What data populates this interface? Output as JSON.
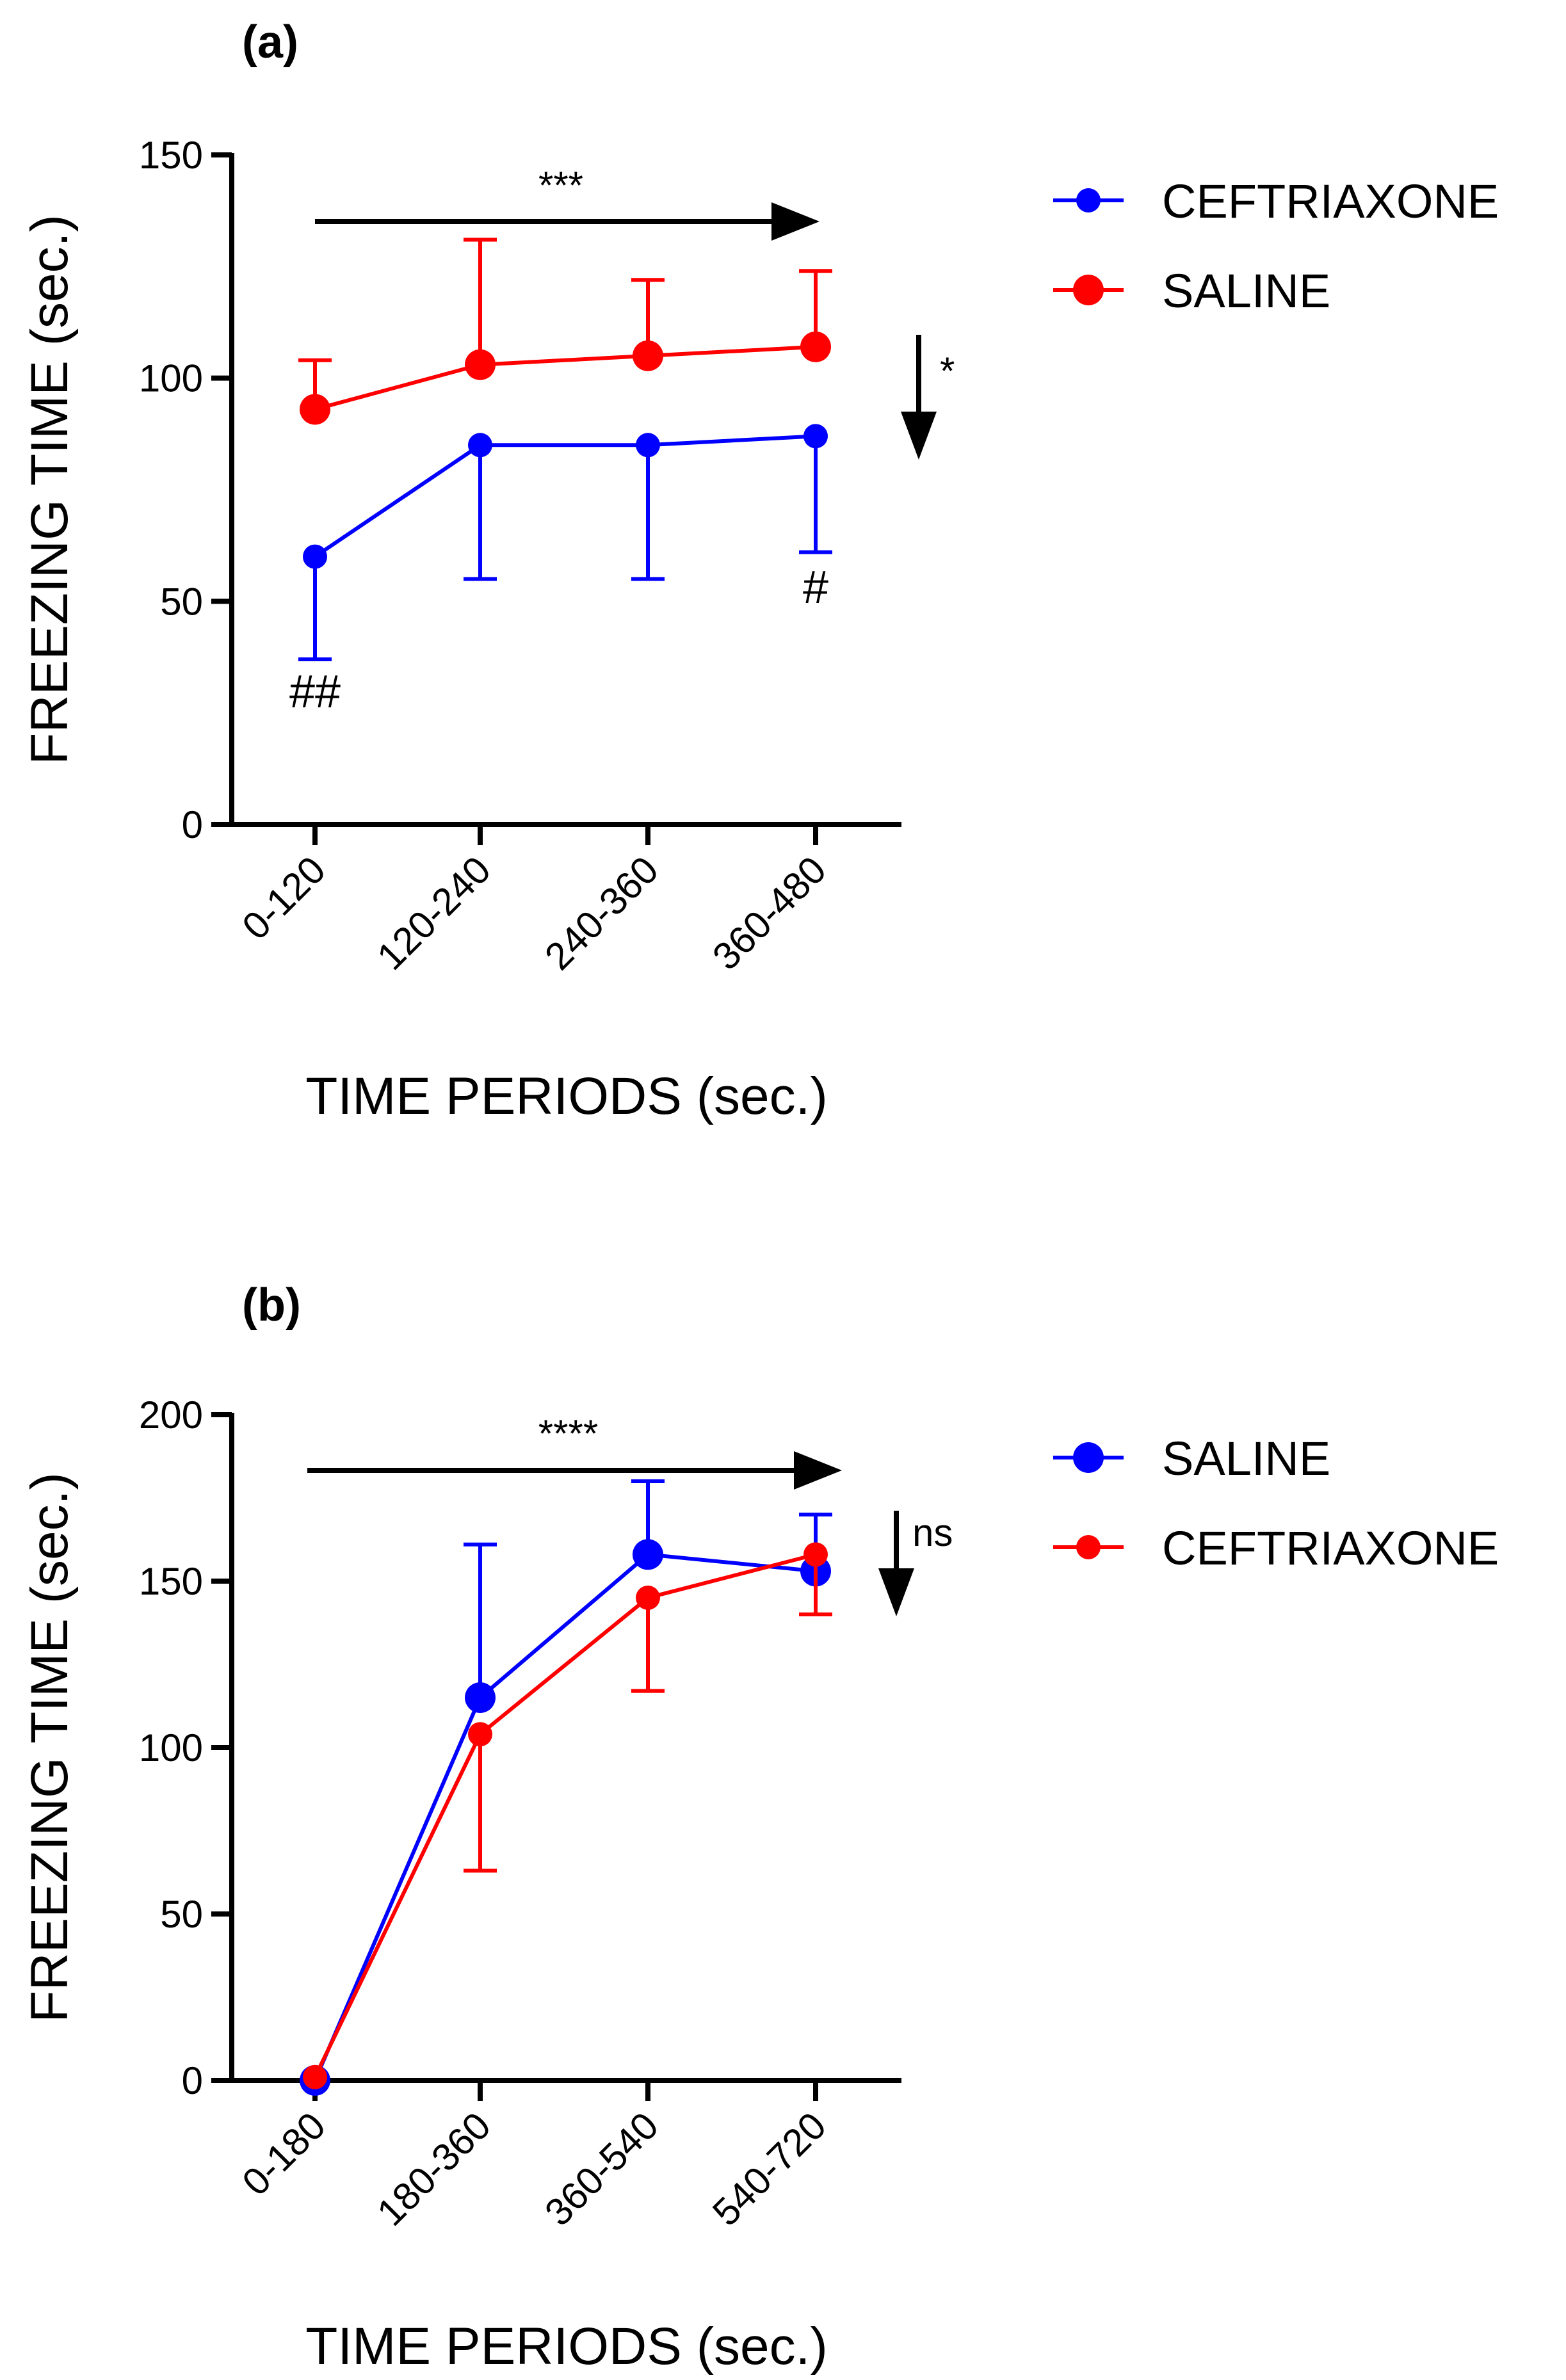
{
  "chart_data": [
    {
      "type": "line",
      "panel_label": "(a)",
      "categories": [
        "0-120",
        "120-240",
        "240-360",
        "360-480"
      ],
      "xlabel": "TIME PERIODS (sec.)",
      "ylabel": "FREEZING TIME (sec.)",
      "ylim": [
        0,
        150
      ],
      "yticks": [
        0,
        50,
        100,
        150
      ],
      "grid": false,
      "legend_position": "right",
      "series": [
        {
          "name": "CEFTRIAXONE",
          "color": "#0000ff",
          "marker": "small",
          "values": [
            60,
            85,
            85,
            87
          ],
          "error_direction": "down",
          "errors": [
            23,
            30,
            30,
            26
          ]
        },
        {
          "name": "SALINE",
          "color": "#ff0000",
          "marker": "large",
          "values": [
            93,
            103,
            105,
            107
          ],
          "error_direction": "up",
          "errors": [
            11,
            28,
            17,
            17
          ]
        }
      ],
      "annotations": {
        "trend_label": "***",
        "group_label": "*",
        "hash_labels": [
          {
            "category_index": 0,
            "text": "##"
          },
          {
            "category_index": 3,
            "text": "#"
          }
        ]
      }
    },
    {
      "type": "line",
      "panel_label": "(b)",
      "categories": [
        "0-180",
        "180-360",
        "360-540",
        "540-720"
      ],
      "xlabel": "TIME PERIODS (sec.)",
      "ylabel": "FREEZING TIME (sec.)",
      "ylim": [
        0,
        200
      ],
      "yticks": [
        0,
        50,
        100,
        150,
        200
      ],
      "grid": false,
      "legend_position": "right",
      "series": [
        {
          "name": "SALINE",
          "color": "#0000ff",
          "marker": "large",
          "values": [
            0,
            115,
            158,
            153
          ],
          "error_direction": "up",
          "errors": [
            0,
            46,
            22,
            17
          ]
        },
        {
          "name": "CEFTRIAXONE",
          "color": "#ff0000",
          "marker": "small",
          "values": [
            1,
            104,
            145,
            158
          ],
          "error_direction": "down",
          "errors": [
            0,
            41,
            28,
            18
          ]
        }
      ],
      "annotations": {
        "trend_label": "****",
        "group_label": "ns",
        "hash_labels": []
      }
    }
  ]
}
